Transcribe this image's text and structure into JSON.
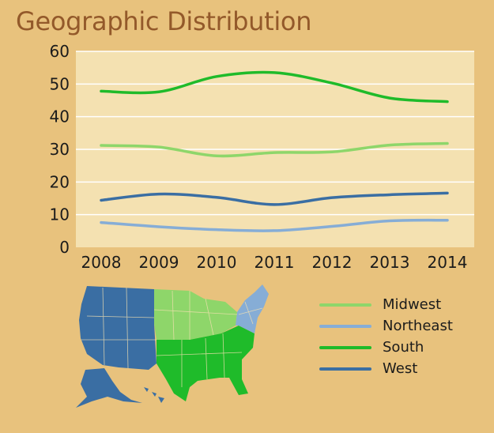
{
  "title": "Geographic Distribution",
  "colors": {
    "background": "#e8c27d",
    "plot_background": "#f4e1b1",
    "title": "#93592a"
  },
  "chart_data": {
    "type": "line",
    "title": "Geographic Distribution",
    "xlabel": "",
    "ylabel": "",
    "x": [
      "2008",
      "2009",
      "2010",
      "2011",
      "2012",
      "2013",
      "2014"
    ],
    "ylim": [
      0,
      60
    ],
    "yticks": [
      "0",
      "10",
      "20",
      "30",
      "40",
      "50",
      "60"
    ],
    "grid": "horizontal",
    "legend_position": "bottom-right",
    "series": [
      {
        "name": "Midwest",
        "color": "#8ed66a",
        "values": [
          31.2,
          30.7,
          28.0,
          29.0,
          29.2,
          31.3,
          31.8
        ]
      },
      {
        "name": "Northeast",
        "color": "#86add6",
        "values": [
          7.6,
          6.3,
          5.4,
          5.1,
          6.4,
          8.1,
          8.3
        ]
      },
      {
        "name": "South",
        "color": "#1fbb2a",
        "values": [
          47.8,
          47.6,
          52.3,
          53.5,
          50.3,
          45.7,
          44.6
        ]
      },
      {
        "name": "West",
        "color": "#3a6ea3",
        "values": [
          14.4,
          16.3,
          15.3,
          13.1,
          15.2,
          16.1,
          16.6
        ]
      }
    ]
  },
  "map": {
    "icon": "us-map-icon",
    "regions": [
      {
        "name": "West",
        "color": "#3a6ea3"
      },
      {
        "name": "Midwest",
        "color": "#8ed66a"
      },
      {
        "name": "South",
        "color": "#1fbb2a"
      },
      {
        "name": "Northeast",
        "color": "#86add6"
      }
    ]
  }
}
